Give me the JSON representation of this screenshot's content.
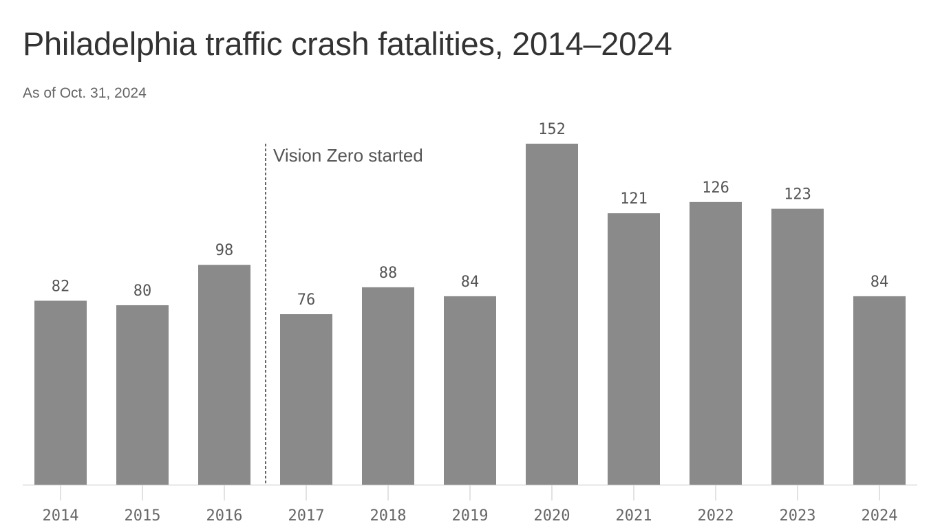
{
  "header": {
    "title": "Philadelphia traffic crash fatalities, 2014–2024",
    "subtitle": "As of Oct. 31, 2024"
  },
  "colors": {
    "bar": "#8a8a8a",
    "axis": "#d9d9d9",
    "annotation_line": "#333333"
  },
  "chart_data": {
    "type": "bar",
    "categories": [
      "2014",
      "2015",
      "2016",
      "2017",
      "2018",
      "2019",
      "2020",
      "2021",
      "2022",
      "2023",
      "2024"
    ],
    "values": [
      82,
      80,
      98,
      76,
      88,
      84,
      152,
      121,
      126,
      123,
      84
    ],
    "title": "Philadelphia traffic crash fatalities, 2014–2024",
    "subtitle": "As of Oct. 31, 2024",
    "xlabel": "",
    "ylabel": "",
    "ylim": [
      0,
      152
    ],
    "grid": false,
    "legend": "none",
    "data_labels": true,
    "annotations": [
      {
        "text": "Vision Zero started",
        "between": [
          "2016",
          "2017"
        ],
        "style": "dashed-vertical-line"
      }
    ]
  }
}
